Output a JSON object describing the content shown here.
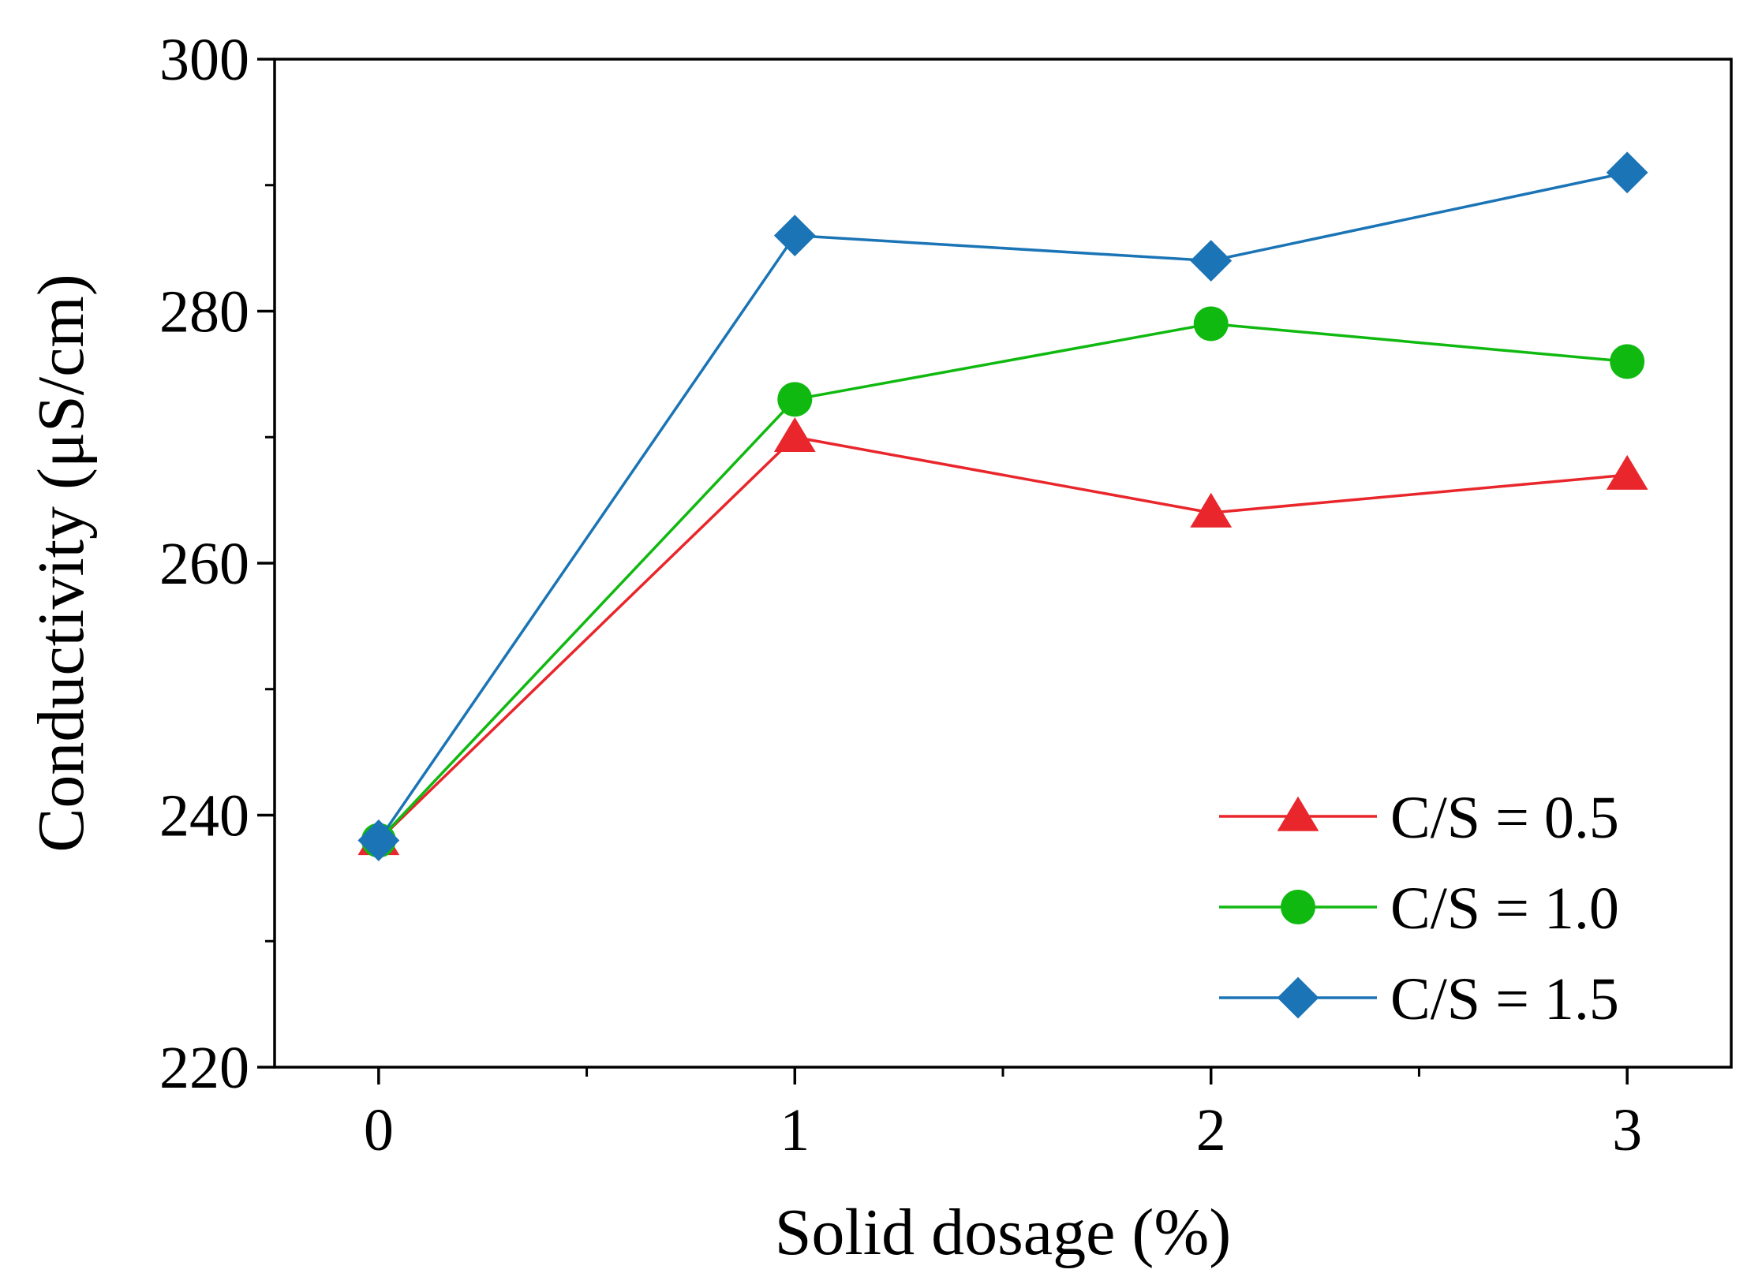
{
  "chart_data": {
    "type": "line",
    "xlabel": "Solid dosage (%)",
    "ylabel": "Conductivity (μS/cm)",
    "x": [
      0,
      1,
      2,
      3
    ],
    "xticks": [
      "0",
      "1",
      "2",
      "3"
    ],
    "xlim": [
      -0.25,
      3.25
    ],
    "yticks": [
      "220",
      "240",
      "260",
      "280",
      "300"
    ],
    "ylim": [
      220,
      300
    ],
    "grid": false,
    "legend_position": "bottom-right",
    "series": [
      {
        "name": "C/S = 0.5",
        "values": [
          238,
          270,
          264,
          267
        ],
        "color": "#e8262b",
        "marker": "triangle"
      },
      {
        "name": "C/S = 1.0",
        "values": [
          238,
          273,
          279,
          276
        ],
        "color": "#10b910",
        "marker": "circle"
      },
      {
        "name": "C/S = 1.5",
        "values": [
          238,
          286,
          284,
          291
        ],
        "color": "#1a74b5",
        "marker": "diamond"
      }
    ]
  }
}
